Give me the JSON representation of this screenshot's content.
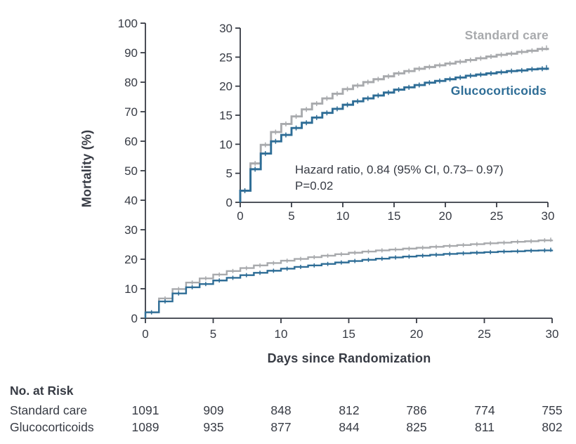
{
  "figure": {
    "text_color": "#373b44",
    "background": "#ffffff"
  },
  "chart_data": {
    "type": "line",
    "subtype": "kaplan-meier-step",
    "x_days": [
      0,
      1,
      2,
      3,
      4,
      5,
      6,
      7,
      8,
      9,
      10,
      11,
      12,
      13,
      14,
      15,
      16,
      17,
      18,
      19,
      20,
      21,
      22,
      23,
      24,
      25,
      26,
      27,
      28,
      29,
      30
    ],
    "series": [
      {
        "name": "Standard care",
        "color": "#a8aaad",
        "values": [
          2.0,
          6.7,
          9.9,
          12.1,
          13.5,
          14.8,
          16.0,
          17.0,
          17.9,
          18.7,
          19.5,
          20.1,
          20.7,
          21.2,
          21.7,
          22.2,
          22.6,
          23.0,
          23.3,
          23.6,
          23.9,
          24.2,
          24.5,
          24.8,
          25.1,
          25.4,
          25.6,
          25.9,
          26.1,
          26.4,
          26.6
        ]
      },
      {
        "name": "Glucocorticoids",
        "color": "#2e6d96",
        "values": [
          2.0,
          5.7,
          8.4,
          10.5,
          11.6,
          12.8,
          13.7,
          14.6,
          15.4,
          16.1,
          16.8,
          17.4,
          17.9,
          18.4,
          18.9,
          19.4,
          19.8,
          20.2,
          20.6,
          20.9,
          21.2,
          21.5,
          21.8,
          22.0,
          22.2,
          22.4,
          22.6,
          22.7,
          22.9,
          23.0,
          23.2
        ]
      }
    ],
    "main_axes": {
      "xlabel": "Days since Randomization",
      "ylabel": "Mortality (%)",
      "xlim": [
        0,
        30
      ],
      "ylim": [
        0,
        100
      ],
      "xticks": [
        0,
        5,
        10,
        15,
        20,
        25,
        30
      ],
      "yticks": [
        0,
        10,
        20,
        30,
        40,
        50,
        60,
        70,
        80,
        90,
        100
      ],
      "grid": false
    },
    "inset_axes": {
      "xlim": [
        0,
        30
      ],
      "ylim": [
        0,
        30
      ],
      "xticks": [
        0,
        5,
        10,
        15,
        20,
        25,
        30
      ],
      "yticks": [
        0,
        5,
        10,
        15,
        20,
        25,
        30
      ],
      "grid": false
    },
    "annotations": {
      "hazard_ratio": "Hazard ratio, 0.84 (95% CI, 0.73– 0.97)",
      "p_value": "P=0.02"
    },
    "legend_position": "inset-right-labels-on-curves"
  },
  "risk_table": {
    "title": "No. at Risk",
    "timepoints": [
      0,
      5,
      10,
      15,
      20,
      25,
      30
    ],
    "rows": [
      {
        "label": "Standard care",
        "counts": [
          "1091",
          "909",
          "848",
          "812",
          "786",
          "774",
          "755"
        ]
      },
      {
        "label": "Glucocorticoids",
        "counts": [
          "1089",
          "935",
          "877",
          "844",
          "825",
          "811",
          "802"
        ]
      }
    ]
  }
}
